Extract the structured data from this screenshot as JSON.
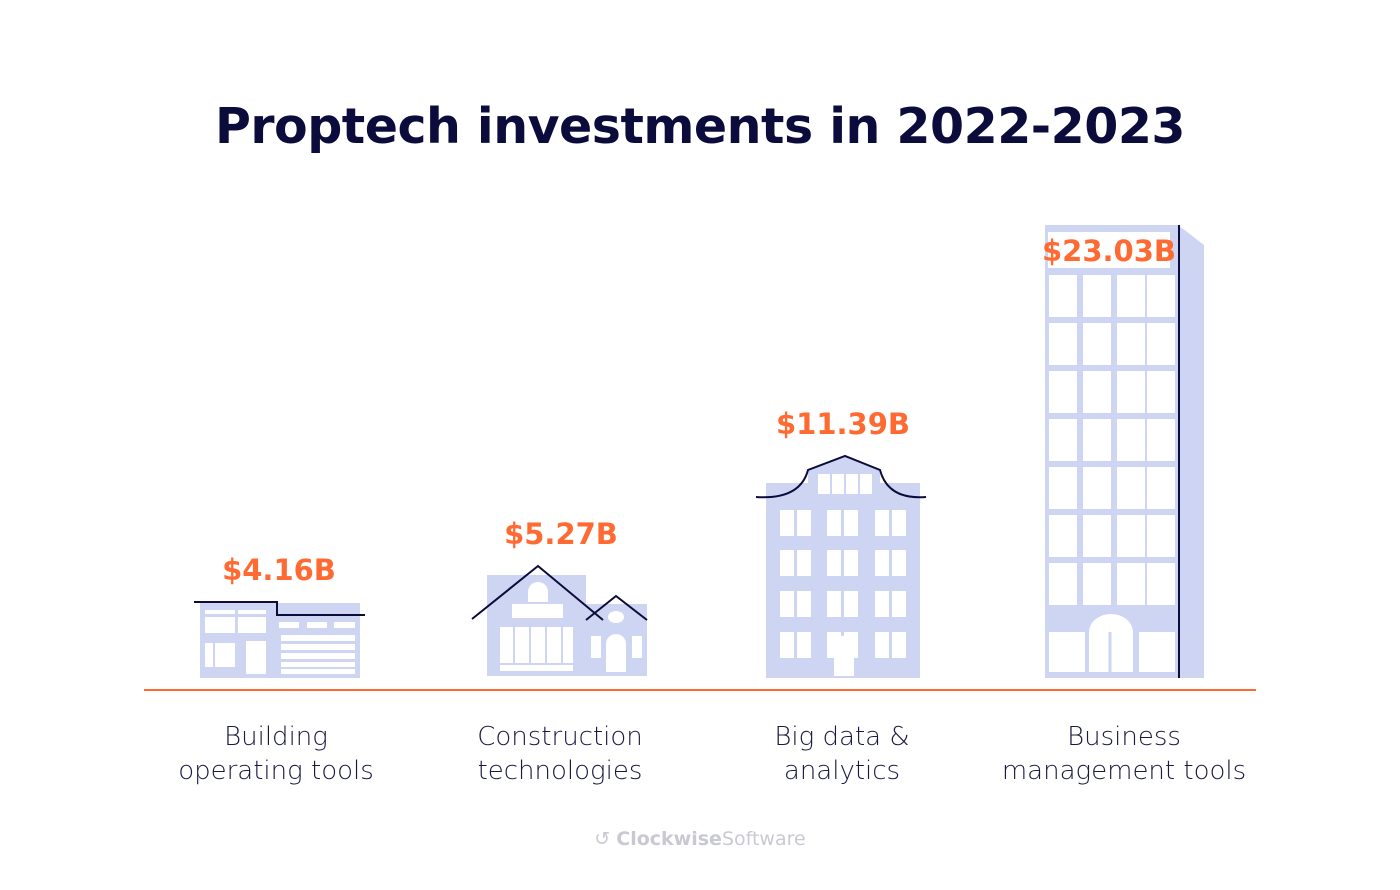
{
  "chart_data": {
    "type": "bar",
    "title": "Proptech investments in 2022-2023",
    "categories": [
      {
        "line1": "Building",
        "line2": "operating tools"
      },
      {
        "line1": "Construction",
        "line2": "technologies"
      },
      {
        "line1": "Big data &",
        "line2": "analytics"
      },
      {
        "line1": "Business",
        "line2": "management tools"
      }
    ],
    "values": [
      4.16,
      5.27,
      11.39,
      23.03
    ],
    "value_labels": [
      "$4.16B",
      "$5.27B",
      "$11.39B",
      "$23.03B"
    ],
    "unit": "USD billions",
    "mark_style": "building illustrations",
    "colors": {
      "building": "#cdd5f2",
      "outline": "#0c0c3c",
      "accent": "#ff6a33",
      "baseline": "#ff6a33"
    }
  },
  "footer": {
    "brand_bold": "Clockwise",
    "brand_light": "Software",
    "icon": "clockwise-logo-icon"
  }
}
